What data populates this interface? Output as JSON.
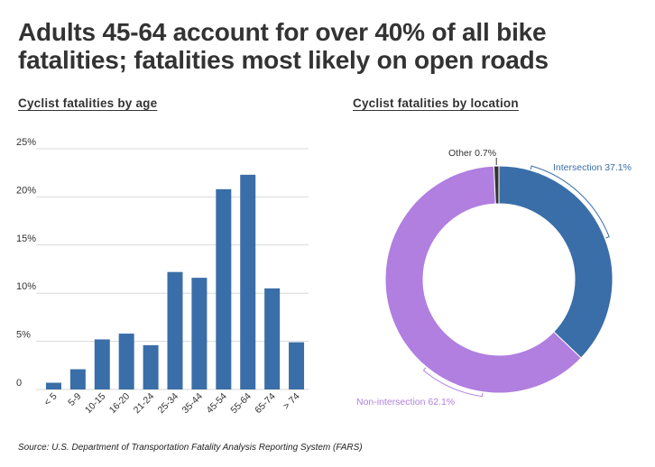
{
  "header": {
    "title": "Adults 45-64 account for over 40% of all bike fatalities; fatalities most likely on open roads",
    "source": "Source: U.S. Department of Transportation Fatality Analysis Reporting System (FARS)"
  },
  "colors": {
    "bar": "#3a6ea8",
    "intersection": "#3a6ea8",
    "non_intersection": "#b07fe0",
    "other": "#333333",
    "grid": "#d9d9d9",
    "text": "#333333"
  },
  "chart_data": [
    {
      "type": "bar",
      "title": "Cyclist fatalities by age",
      "categories": [
        "< 5",
        "5-9",
        "10-15",
        "16-20",
        "21-24",
        "25-34",
        "35-44",
        "45-54",
        "55-64",
        "65-74",
        "> 74"
      ],
      "values": [
        0.7,
        2.1,
        5.2,
        5.8,
        4.6,
        12.2,
        11.6,
        20.8,
        22.3,
        10.5,
        4.9
      ],
      "yticks": [
        "0",
        "5%",
        "10%",
        "15%",
        "20%",
        "25%"
      ],
      "ytick_values": [
        0,
        5,
        10,
        15,
        20,
        25
      ],
      "ylim": [
        0,
        25
      ],
      "xlabel": "",
      "ylabel": "",
      "grid": true
    },
    {
      "type": "pie",
      "donut": true,
      "title": "Cyclist fatalities by location",
      "slices": [
        {
          "label": "Intersection 37.1%",
          "value": 37.1
        },
        {
          "label": "Non-intersection 62.1%",
          "value": 62.1
        },
        {
          "label": "Other 0.7%",
          "value": 0.7
        }
      ]
    }
  ]
}
